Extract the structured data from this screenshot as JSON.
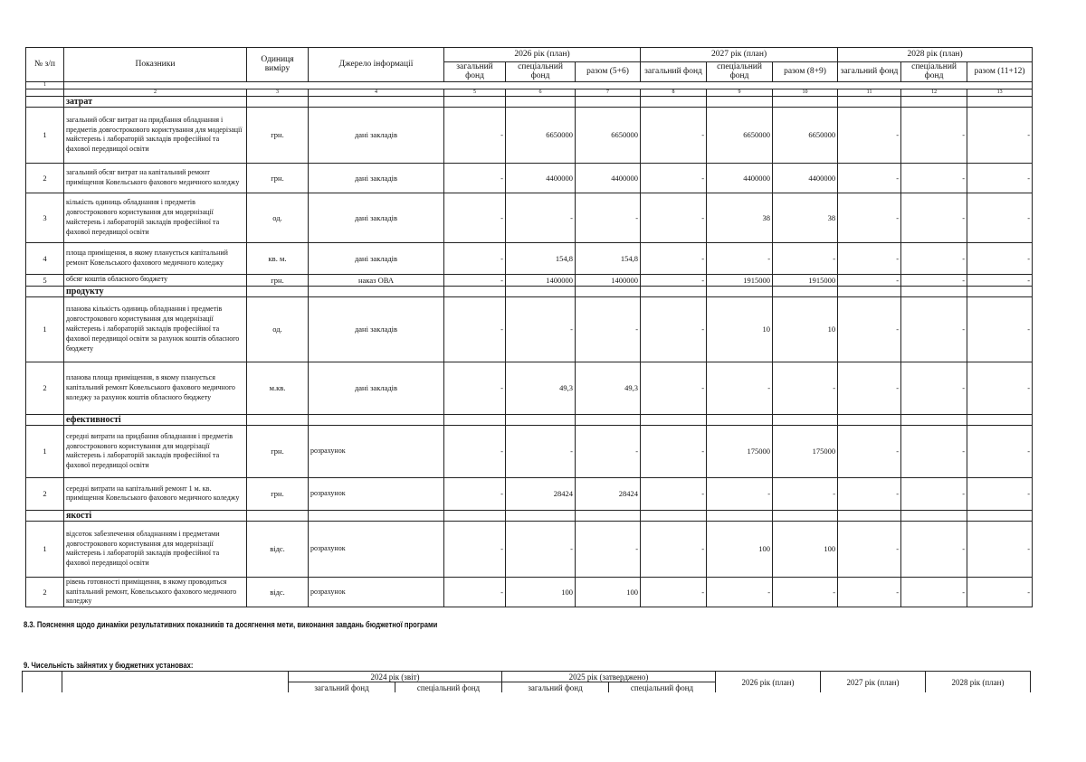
{
  "header": {
    "no": "№ з/п",
    "indicators": "Показники",
    "unit": "Одиниця виміру",
    "source": "Джерело інформації",
    "years": [
      "2026 рік (план)",
      "2027 рік (план)",
      "2028 рік (план)"
    ],
    "sub": [
      [
        "загальний фонд",
        "спеціальний фонд",
        "разом (5+6)"
      ],
      [
        "загальний фонд",
        "спеціальний фонд",
        "разом (8+9)"
      ],
      [
        "загальний фонд",
        "спеціальний фонд",
        "разом (11+12)"
      ]
    ],
    "col_numbers": [
      "1",
      "2",
      "3",
      "4",
      "5",
      "6",
      "7",
      "8",
      "9",
      "10",
      "11",
      "12",
      "13"
    ]
  },
  "sections": [
    {
      "title": "затрат",
      "rows": [
        {
          "no": "1",
          "name": "загальний обсяг витрат на придбання обладнання і предметів довгострокового користування для  модерізації майстерень і лабораторій закладів професійної та фахової передвищої освіти",
          "unit": "грн.",
          "source": "дані закладів",
          "values": [
            "-",
            "6650000",
            "6650000",
            "-",
            "6650000",
            "6650000",
            "-",
            "-",
            "-"
          ]
        },
        {
          "no": "2",
          "name": "загальний обсяг витрат на капітальний ремонт приміщення Ковельського фахового медичного коледжу",
          "unit": "грн.",
          "source": "дані закладів",
          "values": [
            "-",
            "4400000",
            "4400000",
            "-",
            "4400000",
            "4400000",
            "-",
            "-",
            "-"
          ]
        },
        {
          "no": "3",
          "name": "кількість одиниць обладнання і предметів довгострокового користування для модернізації майстерень і лабораторій закладів професійної та фахової передвищої освіти",
          "unit": "од.",
          "source": "дані закладів",
          "values": [
            "-",
            "-",
            "-",
            "-",
            "38",
            "38",
            "-",
            "-",
            "-"
          ]
        },
        {
          "no": "4",
          "name": "площа приміщення, в якому планується капітальний ремонт Ковельського  фахового медичного коледжу",
          "unit": "кв. м.",
          "source": "дані закладів",
          "values": [
            "-",
            "154,8",
            "154,8",
            "-",
            "-",
            "-",
            "-",
            "-",
            "-"
          ]
        },
        {
          "no": "5",
          "name": "обсяг коштів обласного бюджету",
          "unit": "грн.",
          "source": "наказ ОВА",
          "values": [
            "-",
            "1400000",
            "1400000",
            "-",
            "1915000",
            "1915000",
            "-",
            "-",
            "-"
          ]
        }
      ]
    },
    {
      "title": "продукту",
      "rows": [
        {
          "no": "1",
          "name": "планова кількість одиниць обладнання і предметів довгострокового користування для модернізації майстерень і лабораторій закладів професійної та фахової передвищої освіти за рахунок коштів обласного бюджету",
          "unit": "од.",
          "source": "дані закладів",
          "values": [
            "-",
            "-",
            "-",
            "-",
            "10",
            "10",
            "-",
            "-",
            "-"
          ]
        },
        {
          "no": "2",
          "name": "планова площа приміщення, в якому планується  капітальний ремонт Ковельського фахового медичного коледжу за рахунок коштів обласного бюджету",
          "unit": "м.кв.",
          "source": "дані закладів",
          "values": [
            "-",
            "49,3",
            "49,3",
            "-",
            "-",
            "-",
            "-",
            "-",
            "-"
          ]
        }
      ]
    },
    {
      "title": "ефективності",
      "rows": [
        {
          "no": "1",
          "name": "середні витрати на придбання обладнання і предметів довгострокового користування для модерізації майстерень і лабораторій закладів професійної та фахової передвищої освіти",
          "unit": "грн.",
          "source": "розрахунок",
          "values": [
            "-",
            "-",
            "-",
            "-",
            "175000",
            "175000",
            "-",
            "-",
            "-"
          ]
        },
        {
          "no": "2",
          "name": "середні витрати на капітальний ремонт 1 м. кв. приміщення Ковельського  фахового медичного коледжу",
          "unit": "грн.",
          "source": "розрахунок",
          "values": [
            "-",
            "28424",
            "28424",
            "-",
            "-",
            "-",
            "-",
            "-",
            "-"
          ]
        }
      ]
    },
    {
      "title": "якості",
      "rows": [
        {
          "no": "1",
          "name": "відсоток забезпечення обладнанням і предметами  довгострокового користування для  модернізації майстерень і лабораторій закладів професійної та фахової передвищої освіти",
          "unit": "відс.",
          "source": "розрахунок",
          "values": [
            "-",
            "-",
            "-",
            "-",
            "100",
            "100",
            "-",
            "-",
            "-"
          ]
        },
        {
          "no": "2",
          "name": "рівень готовності приміщення, в якому проводиться капітальний ремонт, Ковельського фахового медичного коледжу",
          "unit": "відс.",
          "source": "розрахунок",
          "values": [
            "-",
            "100",
            "100",
            "-",
            "-",
            "-",
            "-",
            "-",
            "-"
          ]
        }
      ]
    }
  ],
  "note_8_3": "8.3. Пояснення щодо динаміки результативних показників та досягнення мети, виконання завдань бюджетної програми",
  "section_9": {
    "title": "9. Чисельність зайнятих у бюджетних установах:",
    "years": [
      "2024 рік (звіт)",
      "2025 рік (затверджено)",
      "2026 рік (план)",
      "2027 рік (план)",
      "2028 рік (план)"
    ],
    "funds": [
      "загальний фонд",
      "спеціальний фонд",
      "загальний фонд",
      "спеціальний фонд"
    ]
  }
}
